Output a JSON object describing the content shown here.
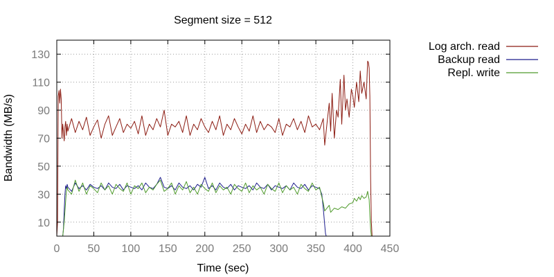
{
  "chart_data": {
    "type": "line",
    "title": "Segment size = 512",
    "xlabel": "Time (sec)",
    "ylabel": "Bandwidth (MB/s)",
    "xlim": [
      0,
      450
    ],
    "ylim": [
      0,
      140
    ],
    "xticks": [
      0,
      50,
      100,
      150,
      200,
      250,
      300,
      350,
      400,
      450
    ],
    "yticks": [
      10,
      30,
      50,
      70,
      90,
      110,
      130
    ],
    "grid": true,
    "legend_position": "outside-right",
    "series": [
      {
        "name": "Log arch. read",
        "color": "#8b1a10",
        "x": [
          0,
          1,
          2,
          3,
          4,
          5,
          6,
          7,
          8,
          9,
          10,
          11,
          12,
          13,
          14,
          15,
          20,
          25,
          30,
          35,
          40,
          45,
          50,
          55,
          60,
          65,
          70,
          75,
          80,
          85,
          90,
          95,
          100,
          105,
          110,
          115,
          120,
          125,
          130,
          135,
          140,
          145,
          150,
          155,
          160,
          165,
          170,
          175,
          180,
          185,
          190,
          195,
          200,
          205,
          210,
          215,
          220,
          225,
          230,
          235,
          240,
          245,
          250,
          255,
          260,
          265,
          270,
          275,
          280,
          285,
          290,
          295,
          300,
          305,
          310,
          315,
          320,
          325,
          330,
          335,
          340,
          345,
          350,
          355,
          360,
          362,
          365,
          368,
          370,
          372,
          375,
          378,
          380,
          383,
          385,
          388,
          390,
          392,
          395,
          398,
          400,
          402,
          405,
          408,
          410,
          412,
          415,
          418,
          420,
          421,
          422,
          423,
          424,
          425,
          426
        ],
        "y": [
          0,
          10,
          100,
          104,
          95,
          105,
          98,
          70,
          80,
          75,
          68,
          78,
          82,
          72,
          80,
          75,
          84,
          74,
          82,
          76,
          85,
          72,
          78,
          83,
          70,
          80,
          86,
          72,
          78,
          84,
          74,
          80,
          77,
          82,
          73,
          86,
          72,
          80,
          76,
          84,
          78,
          90,
          72,
          80,
          78,
          82,
          74,
          86,
          72,
          80,
          76,
          84,
          78,
          74,
          82,
          76,
          86,
          72,
          80,
          76,
          84,
          78,
          73,
          80,
          75,
          86,
          74,
          82,
          76,
          80,
          78,
          74,
          84,
          72,
          80,
          78,
          84,
          76,
          82,
          74,
          86,
          78,
          80,
          76,
          84,
          65,
          80,
          95,
          75,
          102,
          70,
          90,
          85,
          112,
          80,
          115,
          90,
          98,
          85,
          105,
          100,
          92,
          110,
          96,
          118,
          102,
          110,
          98,
          125,
          124,
          120,
          100,
          40,
          10,
          0
        ]
      },
      {
        "name": "Backup read",
        "color": "#1c1c8c",
        "x": [
          0,
          1,
          2,
          3,
          4,
          5,
          6,
          7,
          8,
          9,
          10,
          11,
          12,
          13,
          14,
          15,
          20,
          25,
          30,
          35,
          40,
          45,
          50,
          55,
          60,
          65,
          70,
          75,
          80,
          85,
          90,
          95,
          100,
          105,
          110,
          115,
          120,
          125,
          130,
          135,
          140,
          145,
          150,
          155,
          160,
          165,
          170,
          175,
          180,
          185,
          190,
          195,
          200,
          205,
          210,
          215,
          220,
          225,
          230,
          235,
          240,
          245,
          250,
          255,
          260,
          265,
          270,
          275,
          280,
          285,
          290,
          295,
          300,
          305,
          310,
          315,
          320,
          325,
          330,
          335,
          340,
          345,
          350,
          355,
          358,
          360,
          362,
          363,
          364,
          365,
          370,
          380,
          390,
          400,
          410,
          420,
          425
        ],
        "y": [
          0,
          0,
          0,
          0,
          0,
          0,
          0,
          0,
          0,
          5,
          18,
          30,
          36,
          34,
          37,
          35,
          32,
          38,
          34,
          36,
          33,
          37,
          35,
          34,
          36,
          33,
          38,
          35,
          34,
          37,
          33,
          36,
          35,
          34,
          36,
          33,
          38,
          35,
          34,
          37,
          42,
          35,
          34,
          36,
          33,
          38,
          35,
          34,
          36,
          33,
          37,
          35,
          42,
          34,
          36,
          33,
          38,
          35,
          34,
          37,
          33,
          36,
          35,
          34,
          36,
          33,
          38,
          35,
          34,
          37,
          33,
          36,
          35,
          34,
          36,
          33,
          38,
          35,
          34,
          37,
          33,
          36,
          35,
          34,
          30,
          20,
          8,
          2,
          0,
          0,
          0,
          0,
          0,
          0,
          0,
          0,
          0
        ]
      },
      {
        "name": "Repl. write",
        "color": "#4e9a2a",
        "x": [
          0,
          5,
          8,
          10,
          12,
          13,
          14,
          15,
          20,
          25,
          30,
          35,
          40,
          45,
          50,
          55,
          60,
          65,
          70,
          75,
          80,
          85,
          90,
          95,
          100,
          105,
          110,
          115,
          120,
          125,
          130,
          135,
          140,
          145,
          150,
          155,
          160,
          165,
          170,
          175,
          180,
          185,
          190,
          195,
          200,
          205,
          210,
          215,
          220,
          225,
          230,
          235,
          240,
          245,
          250,
          255,
          260,
          265,
          270,
          275,
          280,
          285,
          290,
          295,
          300,
          305,
          310,
          315,
          320,
          325,
          330,
          335,
          340,
          345,
          350,
          355,
          358,
          360,
          362,
          365,
          368,
          370,
          375,
          380,
          385,
          390,
          395,
          400,
          402,
          405,
          408,
          410,
          412,
          415,
          418,
          420,
          421,
          422,
          423,
          424,
          425
        ],
        "y": [
          0,
          0,
          0,
          10,
          25,
          32,
          35,
          33,
          30,
          40,
          32,
          38,
          30,
          36,
          34,
          31,
          38,
          33,
          36,
          30,
          37,
          34,
          32,
          38,
          30,
          36,
          34,
          38,
          31,
          35,
          33,
          37,
          40,
          32,
          34,
          38,
          30,
          36,
          33,
          39,
          31,
          35,
          30,
          37,
          34,
          32,
          38,
          31,
          36,
          33,
          35,
          30,
          37,
          34,
          32,
          38,
          31,
          36,
          33,
          35,
          30,
          37,
          34,
          32,
          38,
          31,
          36,
          33,
          35,
          30,
          37,
          34,
          32,
          38,
          33,
          35,
          28,
          24,
          18,
          20,
          22,
          17,
          20,
          19,
          21,
          20,
          23,
          24,
          27,
          25,
          28,
          26,
          29,
          27,
          28,
          32,
          29,
          26,
          15,
          5,
          0
        ]
      }
    ]
  }
}
